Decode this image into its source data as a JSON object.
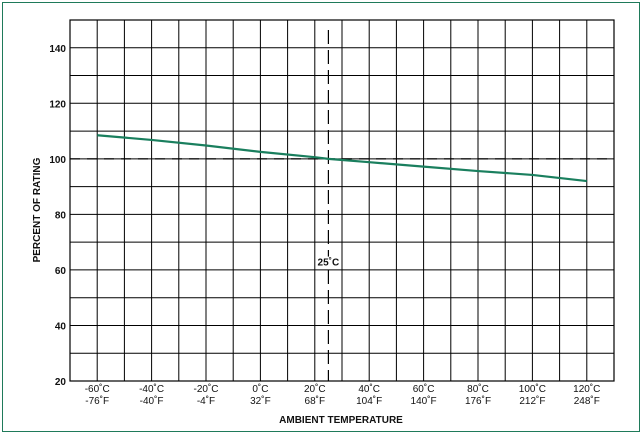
{
  "chart_data": {
    "type": "line",
    "xlabel": "AMBIENT TEMPERATURE",
    "ylabel": "PERCENT OF RATING",
    "ylim": [
      20,
      150
    ],
    "xlim": [
      -70,
      130
    ],
    "grid": true,
    "y_ticks": [
      20,
      40,
      60,
      80,
      100,
      120,
      140
    ],
    "x_ticks": [
      {
        "value": -60,
        "c": "-60˚C",
        "f": "-76˚F"
      },
      {
        "value": -40,
        "c": "-40˚C",
        "f": "-40˚F"
      },
      {
        "value": -20,
        "c": "-20˚C",
        "f": "-4˚F"
      },
      {
        "value": 0,
        "c": "0˚C",
        "f": "32˚F"
      },
      {
        "value": 20,
        "c": "20˚C",
        "f": "68˚F"
      },
      {
        "value": 40,
        "c": "40˚C",
        "f": "104˚F"
      },
      {
        "value": 60,
        "c": "60˚C",
        "f": "140˚F"
      },
      {
        "value": 80,
        "c": "80˚C",
        "f": "176˚F"
      },
      {
        "value": 100,
        "c": "100˚C",
        "f": "212˚F"
      },
      {
        "value": 120,
        "c": "120˚C",
        "f": "248˚F"
      }
    ],
    "series": [
      {
        "color": "#1a7f5e",
        "x": [
          -60,
          -40,
          -20,
          0,
          20,
          25,
          40,
          60,
          80,
          100,
          120
        ],
        "y": [
          108.5,
          106.8,
          104.8,
          102.5,
          100.6,
          100,
          98.8,
          97.2,
          95.6,
          94.2,
          92
        ]
      }
    ],
    "reference_lines": [
      {
        "orientation": "horizontal",
        "value": 100,
        "style": "dashed"
      },
      {
        "orientation": "vertical",
        "value": 25,
        "style": "dashed",
        "label": "25˚C"
      }
    ]
  },
  "colors": {
    "frame": "#1f7a5a",
    "grid": "#000000",
    "line": "#1a7f5e"
  }
}
